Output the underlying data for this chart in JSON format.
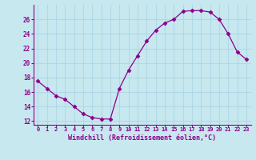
{
  "x": [
    0,
    1,
    2,
    3,
    4,
    5,
    6,
    7,
    8,
    9,
    10,
    11,
    12,
    13,
    14,
    15,
    16,
    17,
    18,
    19,
    20,
    21,
    22,
    23
  ],
  "y": [
    17.5,
    16.5,
    15.5,
    15.0,
    14.0,
    13.0,
    12.5,
    12.3,
    12.3,
    16.5,
    19.0,
    21.0,
    23.0,
    24.5,
    25.5,
    26.0,
    27.1,
    27.2,
    27.2,
    27.0,
    26.0,
    24.0,
    21.5,
    20.5
  ],
  "line_color": "#8b008b",
  "marker": "D",
  "marker_size": 2.5,
  "background_color": "#c8e8f0",
  "grid_color": "#b0d8e8",
  "xlabel": "Windchill (Refroidissement éolien,°C)",
  "xlabel_color": "#8b008b",
  "tick_color": "#8b008b",
  "spine_color": "#8b008b",
  "ylim": [
    11.5,
    28.0
  ],
  "xlim": [
    -0.5,
    23.5
  ],
  "yticks": [
    12,
    14,
    16,
    18,
    20,
    22,
    24,
    26
  ],
  "xticks": [
    0,
    1,
    2,
    3,
    4,
    5,
    6,
    7,
    8,
    9,
    10,
    11,
    12,
    13,
    14,
    15,
    16,
    17,
    18,
    19,
    20,
    21,
    22,
    23
  ],
  "xtick_labels": [
    "0",
    "1",
    "2",
    "3",
    "4",
    "5",
    "6",
    "7",
    "8",
    "9",
    "10",
    "11",
    "12",
    "13",
    "14",
    "15",
    "16",
    "17",
    "18",
    "19",
    "20",
    "21",
    "22",
    "23"
  ]
}
